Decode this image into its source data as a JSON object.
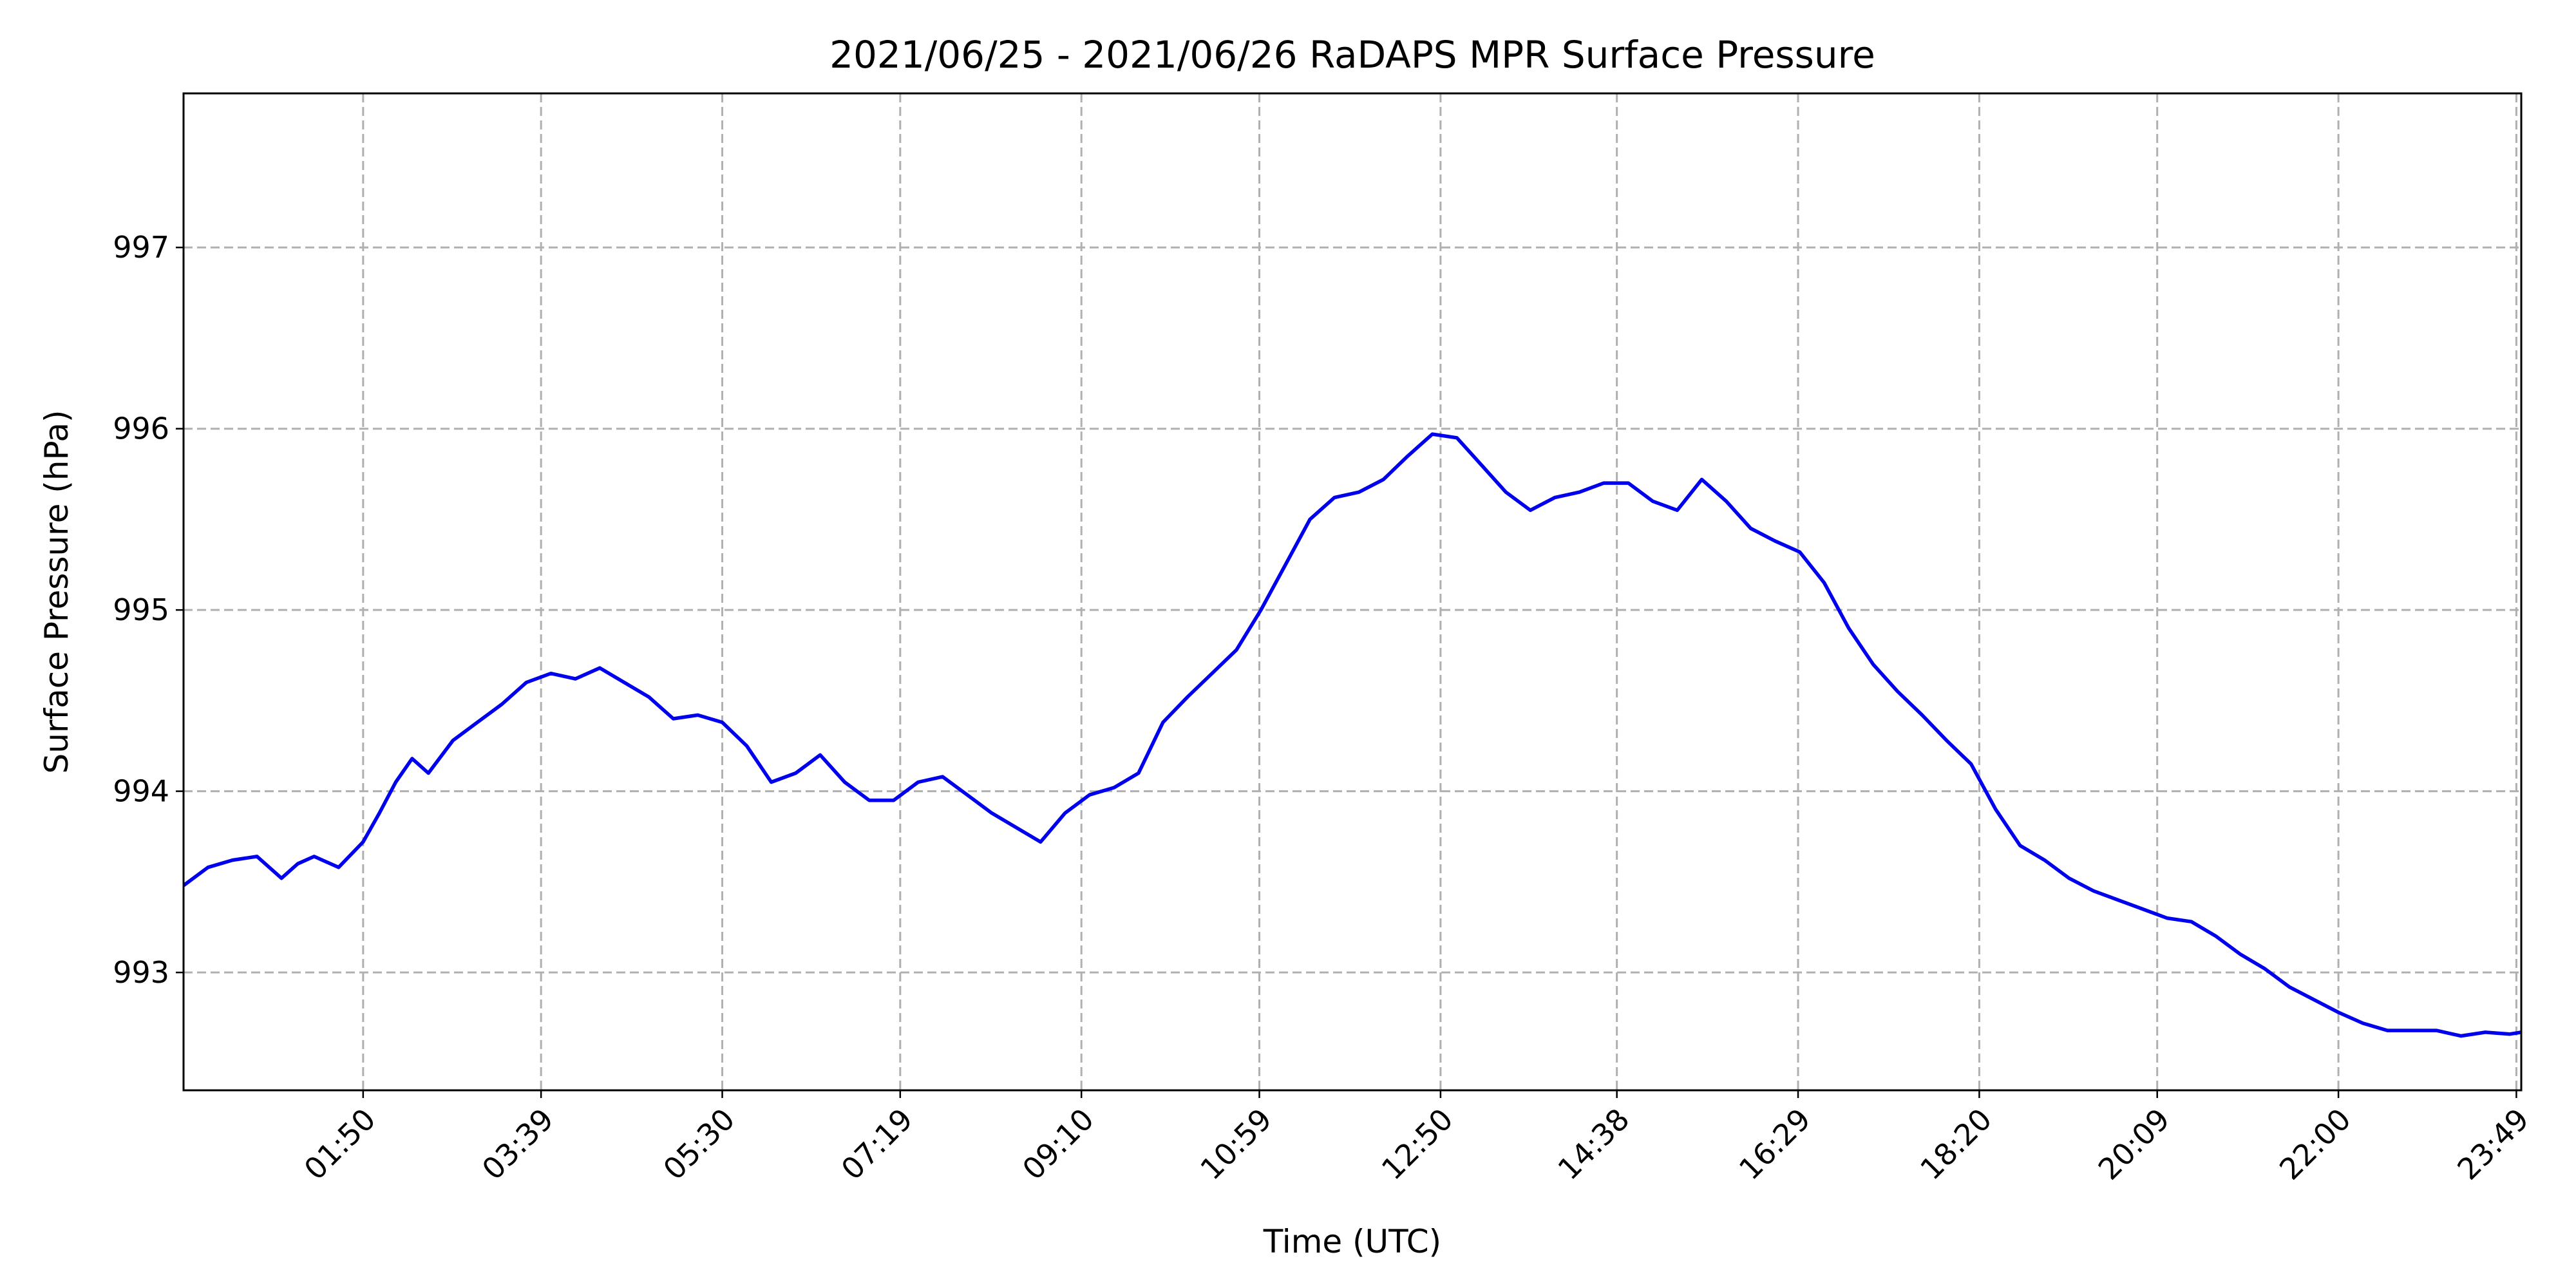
{
  "chart_data": {
    "type": "line",
    "title": "2021/06/25 - 2021/06/26 RaDAPS MPR Surface Pressure",
    "xlabel": "Time (UTC)",
    "ylabel": "Surface Pressure (hPa)",
    "grid": true,
    "xlim": [
      "00:00",
      "23:52"
    ],
    "ylim": [
      992.35,
      997.85
    ],
    "x_ticks": [
      "01:50",
      "03:39",
      "05:30",
      "07:19",
      "09:10",
      "10:59",
      "12:50",
      "14:38",
      "16:29",
      "18:20",
      "20:09",
      "22:00",
      "23:49"
    ],
    "y_ticks": [
      "993",
      "994",
      "995",
      "996",
      "997"
    ],
    "series": [
      {
        "color": "#0000ee",
        "x": [
          "00:00",
          "00:15",
          "00:30",
          "00:45",
          "01:00",
          "01:10",
          "01:20",
          "01:35",
          "01:50",
          "02:00",
          "02:10",
          "02:20",
          "02:30",
          "02:45",
          "03:00",
          "03:15",
          "03:30",
          "03:45",
          "04:00",
          "04:15",
          "04:30",
          "04:45",
          "05:00",
          "05:15",
          "05:30",
          "05:45",
          "06:00",
          "06:15",
          "06:30",
          "06:45",
          "07:00",
          "07:15",
          "07:30",
          "07:45",
          "08:00",
          "08:15",
          "08:30",
          "08:45",
          "09:00",
          "09:15",
          "09:30",
          "09:45",
          "10:00",
          "10:15",
          "10:30",
          "10:45",
          "11:00",
          "11:15",
          "11:30",
          "11:45",
          "12:00",
          "12:15",
          "12:30",
          "12:45",
          "13:00",
          "13:15",
          "13:30",
          "13:45",
          "14:00",
          "14:15",
          "14:30",
          "14:45",
          "15:00",
          "15:15",
          "15:30",
          "15:45",
          "16:00",
          "16:15",
          "16:30",
          "16:45",
          "17:00",
          "17:15",
          "17:30",
          "17:45",
          "18:00",
          "18:15",
          "18:30",
          "18:45",
          "19:00",
          "19:15",
          "19:30",
          "19:45",
          "20:00",
          "20:15",
          "20:30",
          "20:45",
          "21:00",
          "21:15",
          "21:30",
          "21:45",
          "22:00",
          "22:15",
          "22:30",
          "22:45",
          "23:00",
          "23:15",
          "23:30",
          "23:45",
          "23:52"
        ],
        "y": [
          993.48,
          993.58,
          993.62,
          993.64,
          993.52,
          993.6,
          993.64,
          993.58,
          993.72,
          993.88,
          994.05,
          994.18,
          994.1,
          994.28,
          994.38,
          994.48,
          994.6,
          994.65,
          994.62,
          994.68,
          994.6,
          994.52,
          994.4,
          994.42,
          994.38,
          994.25,
          994.05,
          994.1,
          994.2,
          994.05,
          993.95,
          993.95,
          994.05,
          994.08,
          993.98,
          993.88,
          993.8,
          993.72,
          993.88,
          993.98,
          994.02,
          994.1,
          994.38,
          994.52,
          994.65,
          994.78,
          995.0,
          995.25,
          995.5,
          995.62,
          995.65,
          995.72,
          995.85,
          995.97,
          995.95,
          995.8,
          995.65,
          995.55,
          995.62,
          995.65,
          995.7,
          995.7,
          995.6,
          995.55,
          995.72,
          995.6,
          995.45,
          995.38,
          995.32,
          995.15,
          994.9,
          994.7,
          994.55,
          994.42,
          994.28,
          994.15,
          993.9,
          993.7,
          993.62,
          993.52,
          993.45,
          993.4,
          993.35,
          993.3,
          993.28,
          993.2,
          993.1,
          993.02,
          992.92,
          992.85,
          992.78,
          992.72,
          992.68,
          992.68,
          992.68,
          992.65,
          992.67,
          992.66,
          992.67
        ]
      }
    ]
  }
}
